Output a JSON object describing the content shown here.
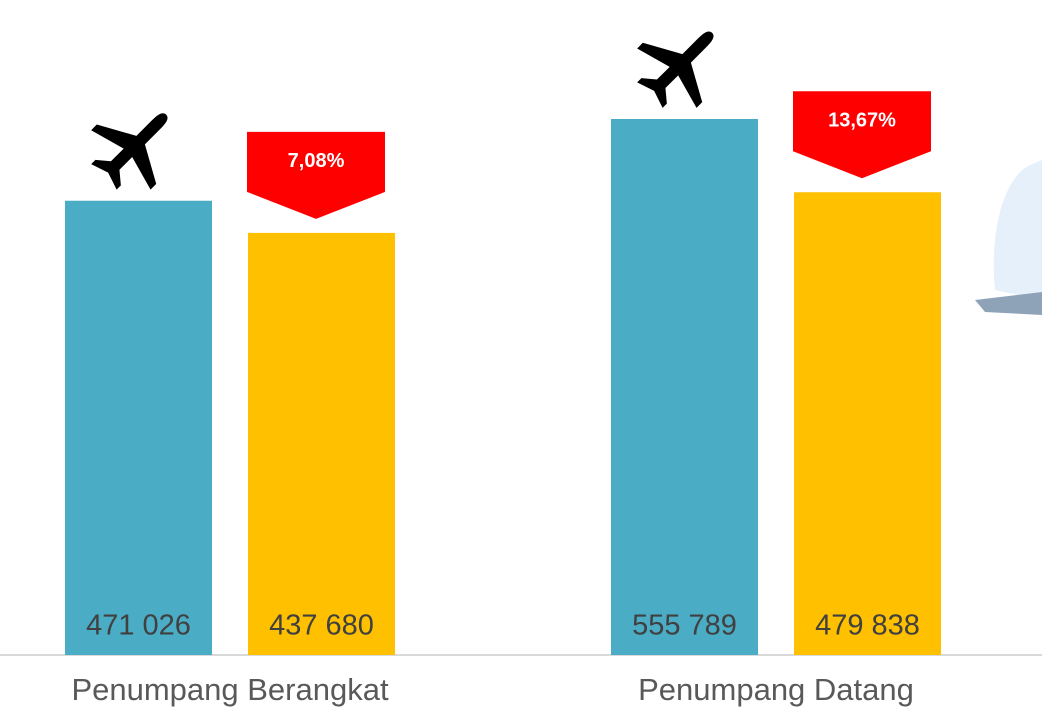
{
  "chart_data": {
    "type": "bar",
    "categories": [
      "Penumpang Berangkat",
      "Penumpang Datang"
    ],
    "series": [
      {
        "color": "#4bacc6",
        "values": [
          471026,
          555789
        ],
        "value_labels": [
          "471 026",
          "555 789"
        ]
      },
      {
        "color": "#ffc000",
        "values": [
          437680,
          479838
        ],
        "value_labels": [
          "437 680",
          "479 838"
        ]
      }
    ],
    "changes": {
      "color": "#ff0000",
      "values": [
        7.08,
        13.67
      ],
      "value_labels": [
        "7,08%",
        "13,67%"
      ]
    }
  }
}
